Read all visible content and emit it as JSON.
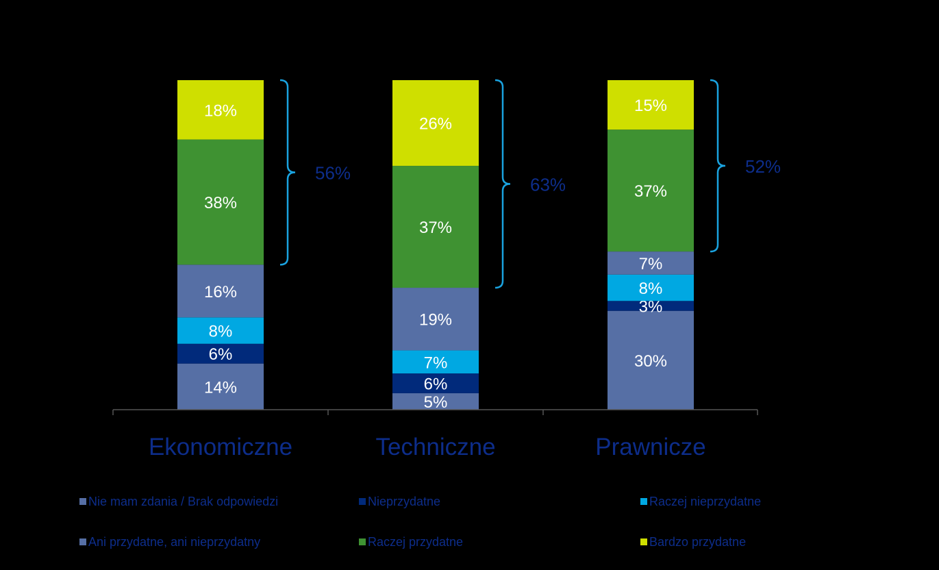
{
  "chart_data": {
    "type": "bar",
    "stacked": true,
    "categories": [
      "Ekonomiczne",
      "Techniczne",
      "Prawnicze"
    ],
    "series": [
      {
        "name": "Nie mam zdania / Brak odpowiedzi",
        "color": "#566fa5",
        "values": [
          14,
          5,
          30
        ],
        "labels": [
          "14%",
          "5%",
          "30%"
        ]
      },
      {
        "name": "Nieprzydatne",
        "color": "#012a7b",
        "values": [
          6,
          6,
          3
        ],
        "labels": [
          "6%",
          "6%",
          "3%"
        ]
      },
      {
        "name": "Raczej nieprzydatne",
        "color": "#00a8e2",
        "values": [
          8,
          7,
          8
        ],
        "labels": [
          "8%",
          "7%",
          "8%"
        ]
      },
      {
        "name": "Ani przydatne, ani nieprzydatny",
        "color": "#566fa5",
        "values": [
          16,
          19,
          7
        ],
        "labels": [
          "16%",
          "19%",
          "7%"
        ]
      },
      {
        "name": "Raczej przydatne",
        "color": "#3f9232",
        "values": [
          38,
          37,
          37
        ],
        "labels": [
          "38%",
          "37%",
          "37%"
        ]
      },
      {
        "name": "Bardzo przydatne",
        "color": "#cfdf00",
        "values": [
          18,
          26,
          15
        ],
        "labels": [
          "18%",
          "26%",
          "15%"
        ]
      }
    ],
    "brackets": [
      {
        "category": "Ekonomiczne",
        "label": "56%"
      },
      {
        "category": "Techniczne",
        "label": "63%"
      },
      {
        "category": "Prawnicze",
        "label": "52%"
      }
    ],
    "ylim": [
      0,
      100
    ],
    "grid": false,
    "legend_position": "bottom",
    "label_color": "#ffffff",
    "category_label_color": "#0d2d8a",
    "bracket_color": "#1aa3e0",
    "axis_color": "#555555"
  }
}
